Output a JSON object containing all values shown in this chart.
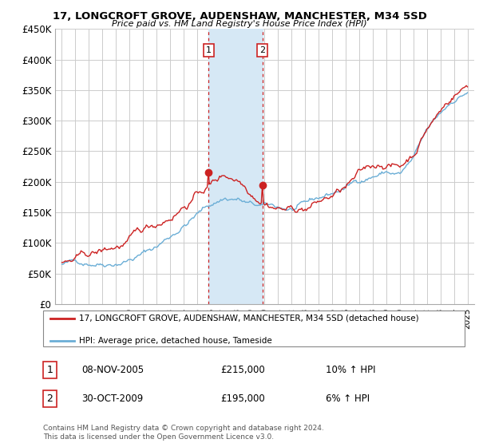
{
  "title": "17, LONGCROFT GROVE, AUDENSHAW, MANCHESTER, M34 5SD",
  "subtitle": "Price paid vs. HM Land Registry's House Price Index (HPI)",
  "legend_line1": "17, LONGCROFT GROVE, AUDENSHAW, MANCHESTER, M34 5SD (detached house)",
  "legend_line2": "HPI: Average price, detached house, Tameside",
  "footer": "Contains HM Land Registry data © Crown copyright and database right 2024.\nThis data is licensed under the Open Government Licence v3.0.",
  "sale1_label": "1",
  "sale1_date": "08-NOV-2005",
  "sale1_price": "£215,000",
  "sale1_hpi": "10% ↑ HPI",
  "sale2_label": "2",
  "sale2_date": "30-OCT-2009",
  "sale2_price": "£195,000",
  "sale2_hpi": "6% ↑ HPI",
  "sale1_x": 2005.86,
  "sale1_y": 215000,
  "sale2_x": 2009.83,
  "sale2_y": 195000,
  "shaded_x1": 2005.86,
  "shaded_x2": 2009.83,
  "ylim": [
    0,
    450000
  ],
  "xlim": [
    1994.5,
    2025.5
  ],
  "yticks": [
    0,
    50000,
    100000,
    150000,
    200000,
    250000,
    300000,
    350000,
    400000,
    450000
  ],
  "ytick_labels": [
    "£0",
    "£50K",
    "£100K",
    "£150K",
    "£200K",
    "£250K",
    "£300K",
    "£350K",
    "£400K",
    "£450K"
  ],
  "xticks": [
    1995,
    1996,
    1997,
    1998,
    1999,
    2000,
    2001,
    2002,
    2003,
    2004,
    2005,
    2006,
    2007,
    2008,
    2009,
    2010,
    2011,
    2012,
    2013,
    2014,
    2015,
    2016,
    2017,
    2018,
    2019,
    2020,
    2021,
    2022,
    2023,
    2024,
    2025
  ],
  "hpi_color": "#6baed6",
  "price_color": "#cc2222",
  "shade_color": "#d6e8f5",
  "background_color": "#ffffff",
  "grid_color": "#cccccc"
}
